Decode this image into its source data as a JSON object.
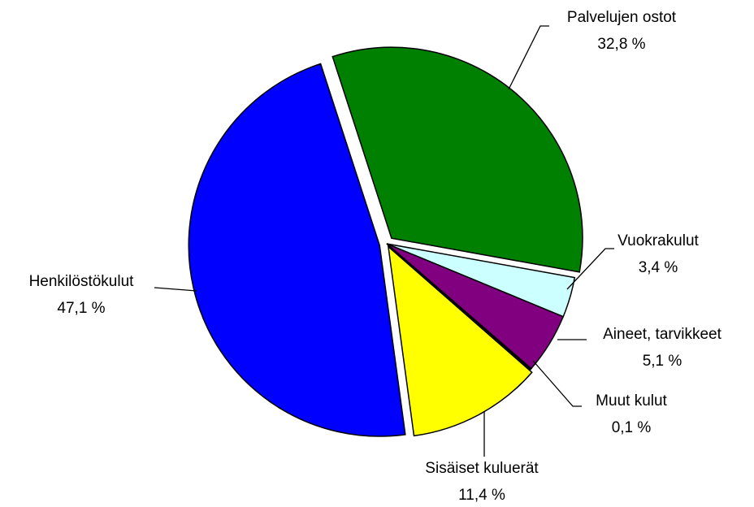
{
  "chart_data": {
    "type": "pie",
    "categories": [
      "Palvelujen ostot",
      "Vuokrakulut",
      "Aineet, tarvikkeet",
      "Muut kulut",
      "Sisäiset kuluerät",
      "Henkilöstökulut"
    ],
    "values": [
      32.8,
      3.4,
      5.1,
      0.1,
      11.4,
      47.1
    ],
    "value_labels": [
      "32,8 %",
      "3,4 %",
      "5,1 %",
      "0,1 %",
      "11,4 %",
      "47,1 %"
    ],
    "colors": [
      "#008000",
      "#ccffff",
      "#800080",
      "#000000",
      "#ffff00",
      "#0000ff"
    ]
  }
}
